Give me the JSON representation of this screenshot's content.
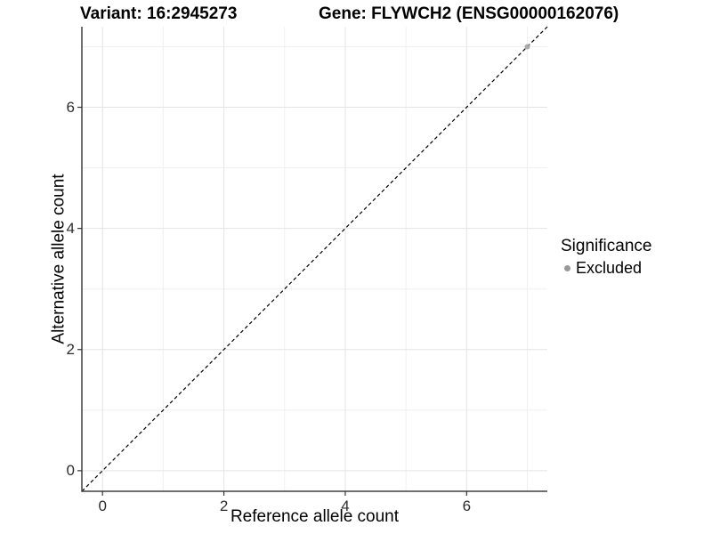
{
  "titles": {
    "left": "Variant: 16:2945273",
    "right": "Gene: FLYWCH2 (ENSG00000162076)"
  },
  "chart_data": {
    "type": "scatter",
    "title_left": "Variant: 16:2945273",
    "title_right": "Gene: FLYWCH2 (ENSG00000162076)",
    "xlabel": "Reference allele count",
    "ylabel": "Alternative allele count",
    "xlim": [
      -0.34,
      7.33
    ],
    "ylim": [
      -0.34,
      7.33
    ],
    "x_ticks": [
      0,
      2,
      4,
      6
    ],
    "y_ticks": [
      0,
      2,
      4,
      6
    ],
    "x_minor_gridlines": [
      1,
      3,
      5,
      7
    ],
    "y_minor_gridlines": [
      1,
      3,
      5,
      7
    ],
    "grid": "on",
    "reference_line": {
      "type": "identity",
      "slope": 1,
      "intercept": 0,
      "style": "dashed",
      "color": "#000000"
    },
    "series": [
      {
        "name": "Excluded",
        "color": "#a8a8a8",
        "points": [
          {
            "x": 7,
            "y": 7
          }
        ]
      }
    ],
    "legend": {
      "title": "Significance",
      "position": "right",
      "entries": [
        {
          "label": "Excluded",
          "color": "#999999"
        }
      ]
    },
    "colors": {
      "background": "#ffffff",
      "panel_background": "#ffffff",
      "major_gridline": "#e4e4e4",
      "minor_gridline": "#f0f0f0",
      "axis_line": "#404040",
      "tick_mark": "#333333",
      "tick_label": "#2e2e2e"
    }
  }
}
